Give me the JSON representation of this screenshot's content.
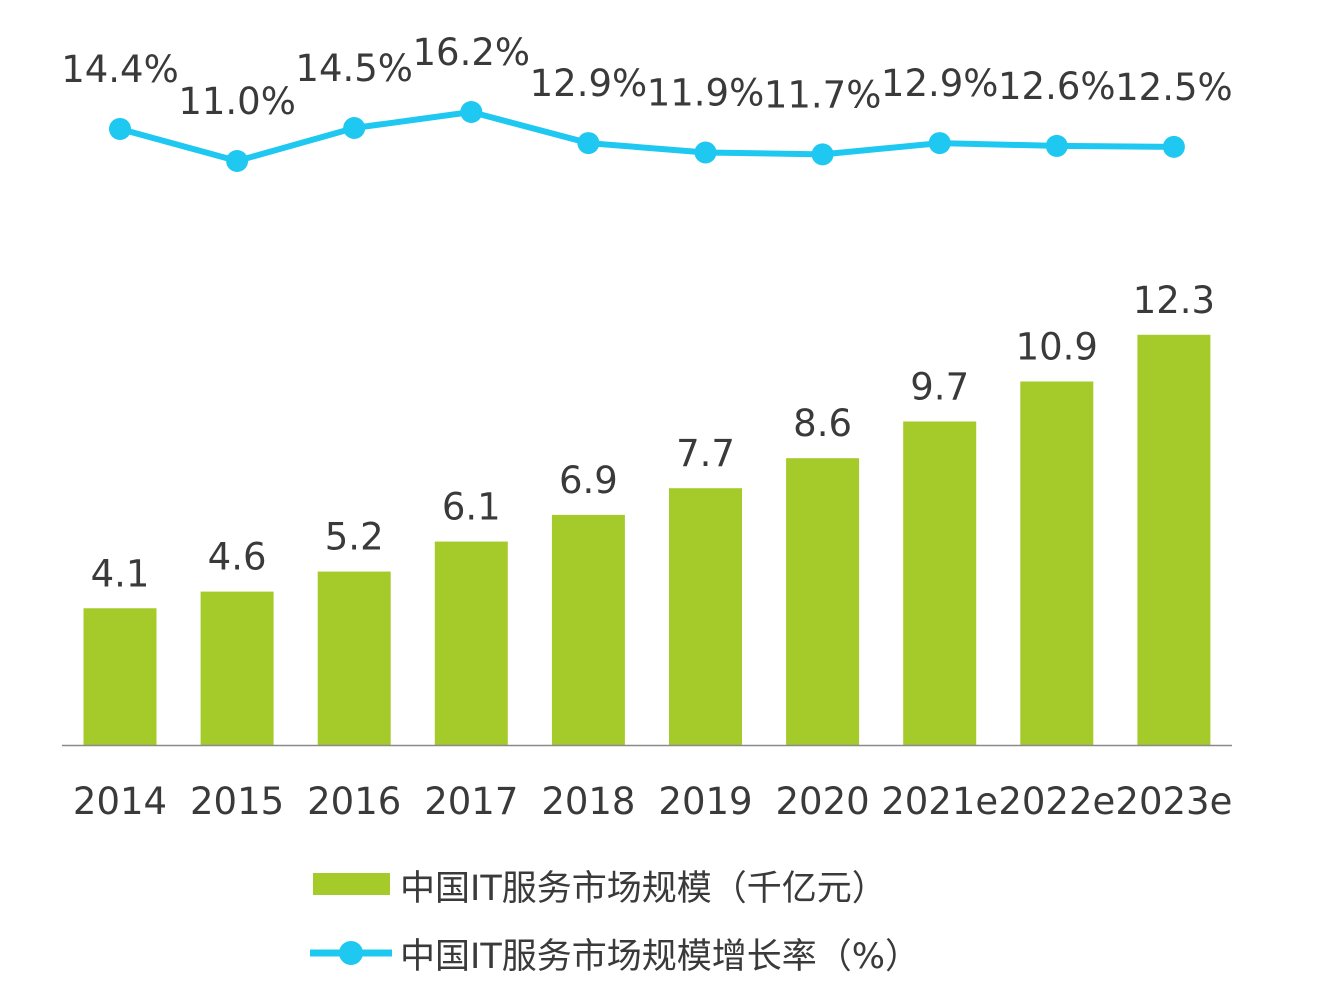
{
  "chart_data": {
    "type": "bar+line",
    "categories": [
      "2014",
      "2015",
      "2016",
      "2017",
      "2018",
      "2019",
      "2020",
      "2021e",
      "2022e",
      "2023e"
    ],
    "series": [
      {
        "name": "中国IT服务市场规模（千亿元）",
        "type": "bar",
        "color": "#a4cb2a",
        "values": [
          4.1,
          4.6,
          5.2,
          6.1,
          6.9,
          7.7,
          8.6,
          9.7,
          10.9,
          12.3
        ],
        "labels": [
          "4.1",
          "4.6",
          "5.2",
          "6.1",
          "6.9",
          "7.7",
          "8.6",
          "9.7",
          "10.9",
          "12.3"
        ]
      },
      {
        "name": "中国IT服务市场规模增长率（%）",
        "type": "line",
        "color": "#1ec8f0",
        "values": [
          14.4,
          11.0,
          14.5,
          16.2,
          12.9,
          11.9,
          11.7,
          12.9,
          12.6,
          12.5
        ],
        "labels": [
          "14.4%",
          "11.0%",
          "14.5%",
          "16.2%",
          "12.9%",
          "11.9%",
          "11.7%",
          "12.9%",
          "12.6%",
          "12.5%"
        ]
      }
    ],
    "legend_position": "bottom",
    "grid": false
  }
}
